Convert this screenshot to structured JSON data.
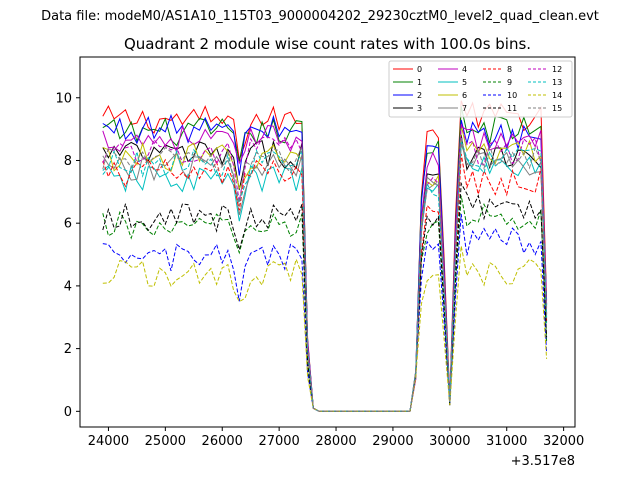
{
  "suptitle": "Data file: modeM0/AS1A10_115T03_9000004202_29230cztM0_level2_quad_clean.evt",
  "chart_data": {
    "type": "line",
    "title": "Quadrant 2 module wise count rates with 100.0s bins.",
    "xlabel": "",
    "ylabel": "",
    "x_offset_label": "+3.517e8",
    "xlim": [
      23500,
      32200
    ],
    "ylim": [
      -0.5,
      11.3
    ],
    "xticks": [
      24000,
      25000,
      26000,
      27000,
      28000,
      29000,
      30000,
      31000,
      32000
    ],
    "yticks": [
      0,
      2,
      4,
      6,
      8,
      10
    ],
    "grid": false,
    "legend": {
      "location": "top-right",
      "columns": 4
    },
    "x_start": 23900,
    "x_step": 100,
    "x_end": 31700,
    "series": [
      {
        "name": "0",
        "color": "#ff0000",
        "style": "solid",
        "level": 9.3,
        "recover": 8.9,
        "final": 9.8,
        "gap_dip": 0.4
      },
      {
        "name": "1",
        "color": "#008000",
        "style": "solid",
        "level": 8.9,
        "recover": 8.4,
        "final": 9.4,
        "gap_dip": 0.3
      },
      {
        "name": "2",
        "color": "#0000ff",
        "style": "solid",
        "level": 9.0,
        "recover": 8.3,
        "final": 9.2,
        "gap_dip": 0.3
      },
      {
        "name": "3",
        "color": "#000000",
        "style": "solid",
        "level": 8.2,
        "recover": 7.6,
        "final": 8.5,
        "gap_dip": 0.3
      },
      {
        "name": "4",
        "color": "#bf00bf",
        "style": "solid",
        "level": 8.7,
        "recover": 8.0,
        "final": 9.0,
        "gap_dip": 0.3
      },
      {
        "name": "5",
        "color": "#00bfbf",
        "style": "solid",
        "level": 7.4,
        "recover": 7.0,
        "final": 8.2,
        "gap_dip": 0.3
      },
      {
        "name": "6",
        "color": "#bfbf00",
        "style": "solid",
        "level": 8.1,
        "recover": 7.4,
        "final": 8.6,
        "gap_dip": 0.3
      },
      {
        "name": "7",
        "color": "#808080",
        "style": "solid",
        "level": 7.8,
        "recover": 7.2,
        "final": 8.3,
        "gap_dip": 0.3
      },
      {
        "name": "8",
        "color": "#ff0000",
        "style": "dashed",
        "level": 7.6,
        "recover": 6.5,
        "final": 7.7,
        "gap_dip": 0.2
      },
      {
        "name": "9",
        "color": "#008000",
        "style": "dashed",
        "level": 5.9,
        "recover": 5.8,
        "final": 6.6,
        "gap_dip": 0.2
      },
      {
        "name": "10",
        "color": "#0000ff",
        "style": "dashed",
        "level": 4.9,
        "recover": 5.2,
        "final": 5.8,
        "gap_dip": 0.2
      },
      {
        "name": "11",
        "color": "#000000",
        "style": "dashed",
        "level": 6.2,
        "recover": 6.2,
        "final": 7.0,
        "gap_dip": 0.2
      },
      {
        "name": "12",
        "color": "#bf00bf",
        "style": "dashed",
        "level": 8.3,
        "recover": 7.4,
        "final": 8.7,
        "gap_dip": 0.3
      },
      {
        "name": "13",
        "color": "#00bfbf",
        "style": "dashed",
        "level": 7.9,
        "recover": 7.1,
        "final": 8.4,
        "gap_dip": 0.3
      },
      {
        "name": "14",
        "color": "#bfbf00",
        "style": "dashed",
        "level": 4.4,
        "recover": 4.2,
        "final": 4.8,
        "gap_dip": 0.2
      },
      {
        "name": "15",
        "color": "#808080",
        "style": "dashed",
        "level": 8.0,
        "recover": 7.3,
        "final": 8.5,
        "gap_dip": 0.3
      }
    ]
  }
}
